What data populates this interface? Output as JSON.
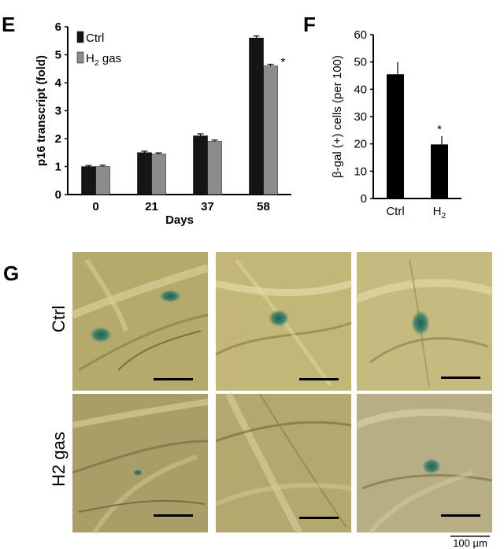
{
  "figure": {
    "panels": {
      "E": "E",
      "F": "F",
      "G": "G"
    },
    "micrograph": {
      "row_labels": [
        "Ctrl",
        "H2 gas"
      ],
      "scale_bar_label": "100 µm"
    }
  },
  "chart_data": [
    {
      "id": "E",
      "type": "bar",
      "xlabel": "Days",
      "ylabel": "p16 transcript (fold)",
      "categories": [
        "0",
        "21",
        "37",
        "58"
      ],
      "ylim": [
        0,
        6
      ],
      "yticks": [
        "0",
        "1",
        "2",
        "3",
        "4",
        "5",
        "6"
      ],
      "legend_placement": "top-left",
      "series": [
        {
          "name": "Ctrl",
          "color": "#151515",
          "values": [
            1.0,
            1.5,
            2.1,
            5.6
          ],
          "errors": [
            0.04,
            0.05,
            0.07,
            0.07
          ]
        },
        {
          "name": "H2 gas",
          "color": "#8c8c8c",
          "values": [
            1.0,
            1.45,
            1.9,
            4.6
          ],
          "errors": [
            0.05,
            0.04,
            0.05,
            0.06
          ]
        }
      ],
      "annotations": [
        {
          "text": "*",
          "category": "58",
          "series": "H2 gas"
        }
      ]
    },
    {
      "id": "F",
      "type": "bar",
      "xlabel": "",
      "ylabel": "β-gal (+) cells (per 100)",
      "categories": [
        "Ctrl",
        "H2"
      ],
      "ylim": [
        0,
        60
      ],
      "yticks": [
        "0",
        "10",
        "20",
        "30",
        "40",
        "50",
        "60"
      ],
      "series": [
        {
          "color": "#000000",
          "values": [
            45.5,
            19.8
          ],
          "errors": [
            4.5,
            3.0
          ]
        }
      ],
      "annotations": [
        {
          "text": "*",
          "category": "H2"
        }
      ]
    }
  ]
}
